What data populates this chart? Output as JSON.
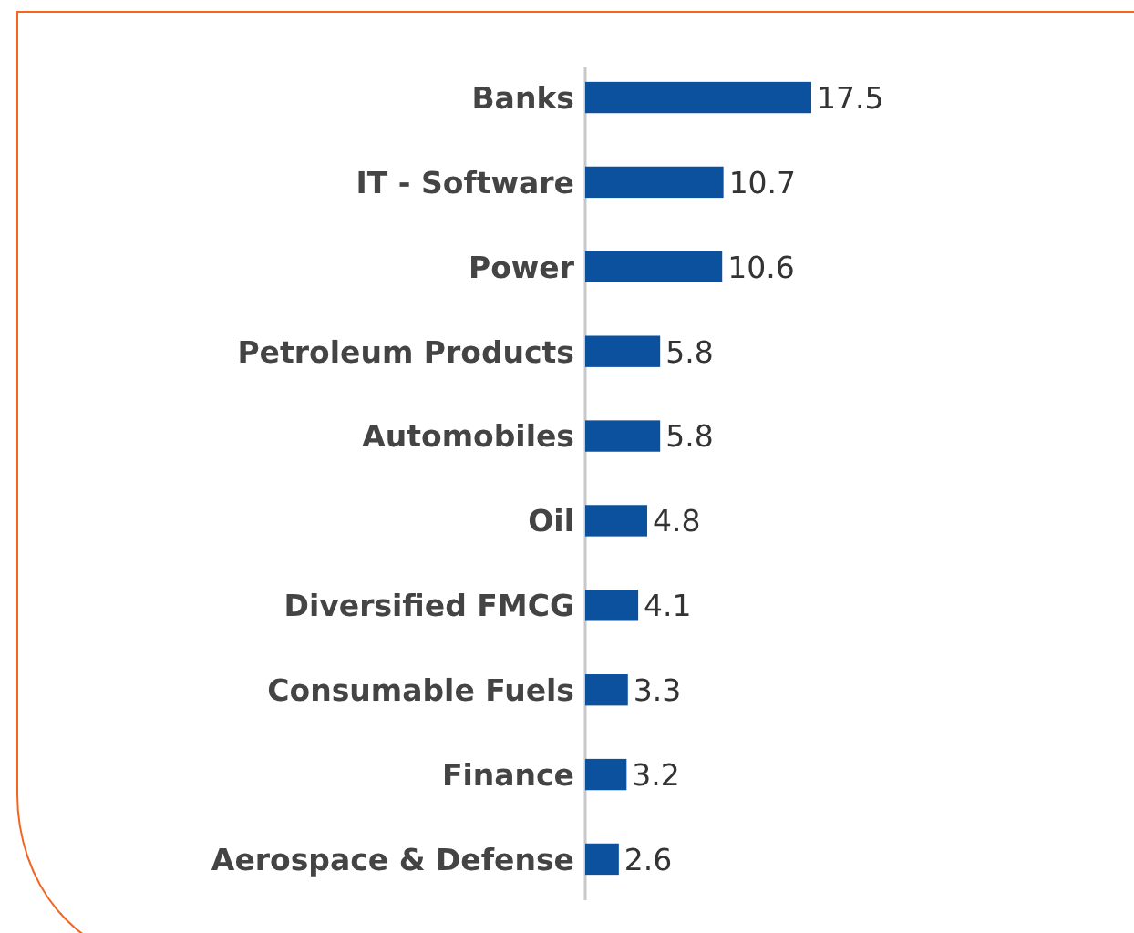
{
  "chart_data": {
    "type": "bar",
    "orientation": "horizontal",
    "categories": [
      "Banks",
      "IT - Software",
      "Power",
      "Petroleum Products",
      "Automobiles",
      "Oil",
      "Diversified FMCG",
      "Consumable Fuels",
      "Finance",
      "Aerospace & Defense"
    ],
    "values": [
      17.5,
      10.7,
      10.6,
      5.8,
      5.8,
      4.8,
      4.1,
      3.3,
      3.2,
      2.6
    ],
    "color": "#0b519e",
    "data_labels": true
  }
}
